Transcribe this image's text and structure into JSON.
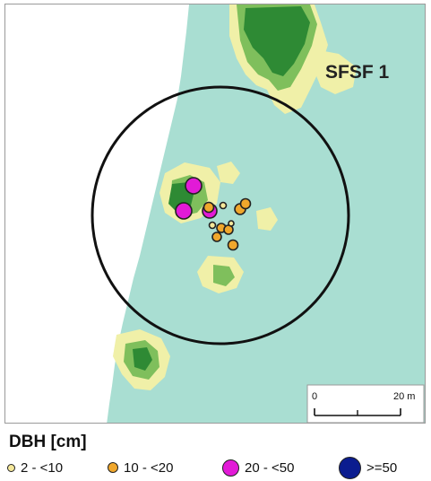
{
  "map": {
    "plot_label": "SFSF 1",
    "scale_bar": {
      "start_label": "0",
      "end_label": "20 m"
    },
    "colors": {
      "background": "#ffffff",
      "open_ground": "#a9ded2",
      "low_vegetation": "#f0f0a8",
      "dense_canopy": "#2e8a34",
      "plot_boundary": "#111111"
    }
  },
  "legend": {
    "title": "DBH [cm]",
    "classes": [
      {
        "label": "2 - <10",
        "color": "#f5e89a",
        "size": "small",
        "icon": "small-circle-icon"
      },
      {
        "label": "10 - <20",
        "color": "#f0a72c",
        "size": "medium",
        "icon": "medium-circle-icon"
      },
      {
        "label": "20 - <50",
        "color": "#e21ad7",
        "size": "large",
        "icon": "large-circle-icon"
      },
      {
        "label": ">=50",
        "color": "#0b1c8f",
        "size": "extra-large",
        "icon": "extra-large-circle-icon"
      }
    ]
  }
}
